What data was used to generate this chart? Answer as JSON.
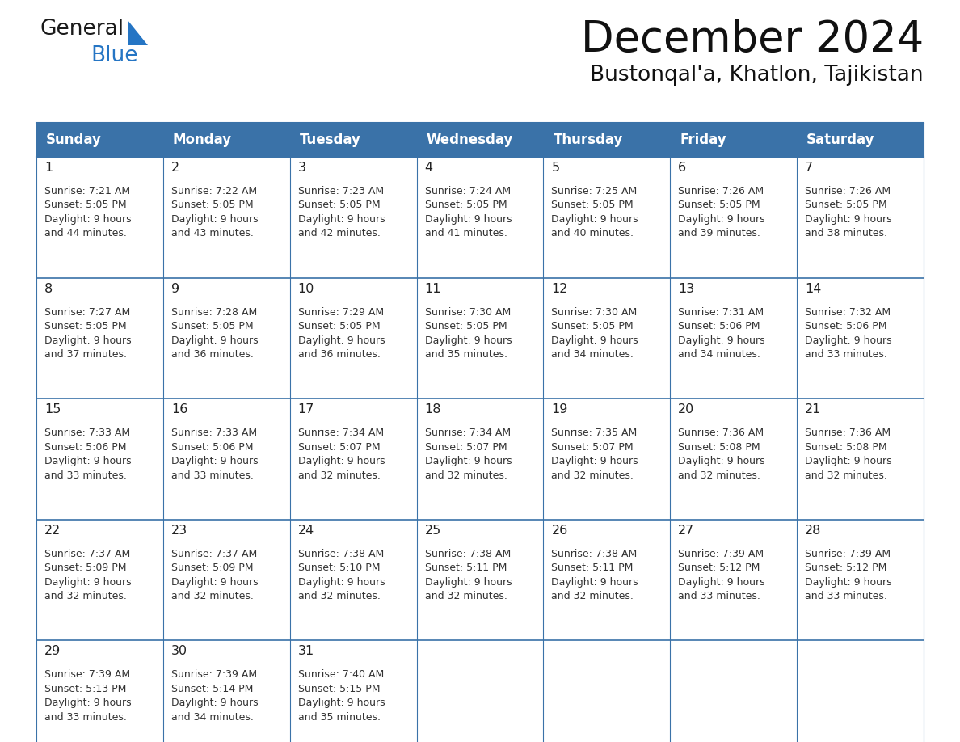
{
  "title": "December 2024",
  "subtitle": "Bustonqal'a, Khatlon, Tajikistan",
  "header_color": "#3a72a8",
  "header_text_color": "#ffffff",
  "cell_bg_white": "#ffffff",
  "cell_bg_light": "#f0f4f8",
  "border_color": "#3a72a8",
  "text_color": "#333333",
  "day_num_color": "#222222",
  "day_names": [
    "Sunday",
    "Monday",
    "Tuesday",
    "Wednesday",
    "Thursday",
    "Friday",
    "Saturday"
  ],
  "days": [
    {
      "day": 1,
      "col": 0,
      "row": 0,
      "sunrise": "7:21 AM",
      "sunset": "5:05 PM",
      "daylight_h": "9 hours",
      "daylight_m": "and 44 minutes."
    },
    {
      "day": 2,
      "col": 1,
      "row": 0,
      "sunrise": "7:22 AM",
      "sunset": "5:05 PM",
      "daylight_h": "9 hours",
      "daylight_m": "and 43 minutes."
    },
    {
      "day": 3,
      "col": 2,
      "row": 0,
      "sunrise": "7:23 AM",
      "sunset": "5:05 PM",
      "daylight_h": "9 hours",
      "daylight_m": "and 42 minutes."
    },
    {
      "day": 4,
      "col": 3,
      "row": 0,
      "sunrise": "7:24 AM",
      "sunset": "5:05 PM",
      "daylight_h": "9 hours",
      "daylight_m": "and 41 minutes."
    },
    {
      "day": 5,
      "col": 4,
      "row": 0,
      "sunrise": "7:25 AM",
      "sunset": "5:05 PM",
      "daylight_h": "9 hours",
      "daylight_m": "and 40 minutes."
    },
    {
      "day": 6,
      "col": 5,
      "row": 0,
      "sunrise": "7:26 AM",
      "sunset": "5:05 PM",
      "daylight_h": "9 hours",
      "daylight_m": "and 39 minutes."
    },
    {
      "day": 7,
      "col": 6,
      "row": 0,
      "sunrise": "7:26 AM",
      "sunset": "5:05 PM",
      "daylight_h": "9 hours",
      "daylight_m": "and 38 minutes."
    },
    {
      "day": 8,
      "col": 0,
      "row": 1,
      "sunrise": "7:27 AM",
      "sunset": "5:05 PM",
      "daylight_h": "9 hours",
      "daylight_m": "and 37 minutes."
    },
    {
      "day": 9,
      "col": 1,
      "row": 1,
      "sunrise": "7:28 AM",
      "sunset": "5:05 PM",
      "daylight_h": "9 hours",
      "daylight_m": "and 36 minutes."
    },
    {
      "day": 10,
      "col": 2,
      "row": 1,
      "sunrise": "7:29 AM",
      "sunset": "5:05 PM",
      "daylight_h": "9 hours",
      "daylight_m": "and 36 minutes."
    },
    {
      "day": 11,
      "col": 3,
      "row": 1,
      "sunrise": "7:30 AM",
      "sunset": "5:05 PM",
      "daylight_h": "9 hours",
      "daylight_m": "and 35 minutes."
    },
    {
      "day": 12,
      "col": 4,
      "row": 1,
      "sunrise": "7:30 AM",
      "sunset": "5:05 PM",
      "daylight_h": "9 hours",
      "daylight_m": "and 34 minutes."
    },
    {
      "day": 13,
      "col": 5,
      "row": 1,
      "sunrise": "7:31 AM",
      "sunset": "5:06 PM",
      "daylight_h": "9 hours",
      "daylight_m": "and 34 minutes."
    },
    {
      "day": 14,
      "col": 6,
      "row": 1,
      "sunrise": "7:32 AM",
      "sunset": "5:06 PM",
      "daylight_h": "9 hours",
      "daylight_m": "and 33 minutes."
    },
    {
      "day": 15,
      "col": 0,
      "row": 2,
      "sunrise": "7:33 AM",
      "sunset": "5:06 PM",
      "daylight_h": "9 hours",
      "daylight_m": "and 33 minutes."
    },
    {
      "day": 16,
      "col": 1,
      "row": 2,
      "sunrise": "7:33 AM",
      "sunset": "5:06 PM",
      "daylight_h": "9 hours",
      "daylight_m": "and 33 minutes."
    },
    {
      "day": 17,
      "col": 2,
      "row": 2,
      "sunrise": "7:34 AM",
      "sunset": "5:07 PM",
      "daylight_h": "9 hours",
      "daylight_m": "and 32 minutes."
    },
    {
      "day": 18,
      "col": 3,
      "row": 2,
      "sunrise": "7:34 AM",
      "sunset": "5:07 PM",
      "daylight_h": "9 hours",
      "daylight_m": "and 32 minutes."
    },
    {
      "day": 19,
      "col": 4,
      "row": 2,
      "sunrise": "7:35 AM",
      "sunset": "5:07 PM",
      "daylight_h": "9 hours",
      "daylight_m": "and 32 minutes."
    },
    {
      "day": 20,
      "col": 5,
      "row": 2,
      "sunrise": "7:36 AM",
      "sunset": "5:08 PM",
      "daylight_h": "9 hours",
      "daylight_m": "and 32 minutes."
    },
    {
      "day": 21,
      "col": 6,
      "row": 2,
      "sunrise": "7:36 AM",
      "sunset": "5:08 PM",
      "daylight_h": "9 hours",
      "daylight_m": "and 32 minutes."
    },
    {
      "day": 22,
      "col": 0,
      "row": 3,
      "sunrise": "7:37 AM",
      "sunset": "5:09 PM",
      "daylight_h": "9 hours",
      "daylight_m": "and 32 minutes."
    },
    {
      "day": 23,
      "col": 1,
      "row": 3,
      "sunrise": "7:37 AM",
      "sunset": "5:09 PM",
      "daylight_h": "9 hours",
      "daylight_m": "and 32 minutes."
    },
    {
      "day": 24,
      "col": 2,
      "row": 3,
      "sunrise": "7:38 AM",
      "sunset": "5:10 PM",
      "daylight_h": "9 hours",
      "daylight_m": "and 32 minutes."
    },
    {
      "day": 25,
      "col": 3,
      "row": 3,
      "sunrise": "7:38 AM",
      "sunset": "5:11 PM",
      "daylight_h": "9 hours",
      "daylight_m": "and 32 minutes."
    },
    {
      "day": 26,
      "col": 4,
      "row": 3,
      "sunrise": "7:38 AM",
      "sunset": "5:11 PM",
      "daylight_h": "9 hours",
      "daylight_m": "and 32 minutes."
    },
    {
      "day": 27,
      "col": 5,
      "row": 3,
      "sunrise": "7:39 AM",
      "sunset": "5:12 PM",
      "daylight_h": "9 hours",
      "daylight_m": "and 33 minutes."
    },
    {
      "day": 28,
      "col": 6,
      "row": 3,
      "sunrise": "7:39 AM",
      "sunset": "5:12 PM",
      "daylight_h": "9 hours",
      "daylight_m": "and 33 minutes."
    },
    {
      "day": 29,
      "col": 0,
      "row": 4,
      "sunrise": "7:39 AM",
      "sunset": "5:13 PM",
      "daylight_h": "9 hours",
      "daylight_m": "and 33 minutes."
    },
    {
      "day": 30,
      "col": 1,
      "row": 4,
      "sunrise": "7:39 AM",
      "sunset": "5:14 PM",
      "daylight_h": "9 hours",
      "daylight_m": "and 34 minutes."
    },
    {
      "day": 31,
      "col": 2,
      "row": 4,
      "sunrise": "7:40 AM",
      "sunset": "5:15 PM",
      "daylight_h": "9 hours",
      "daylight_m": "and 35 minutes."
    }
  ],
  "num_rows": 5,
  "logo_text1": "General",
  "logo_text2": "Blue",
  "logo_color1": "#1a1a1a",
  "logo_color2": "#2575c4",
  "logo_triangle_color": "#2575c4"
}
